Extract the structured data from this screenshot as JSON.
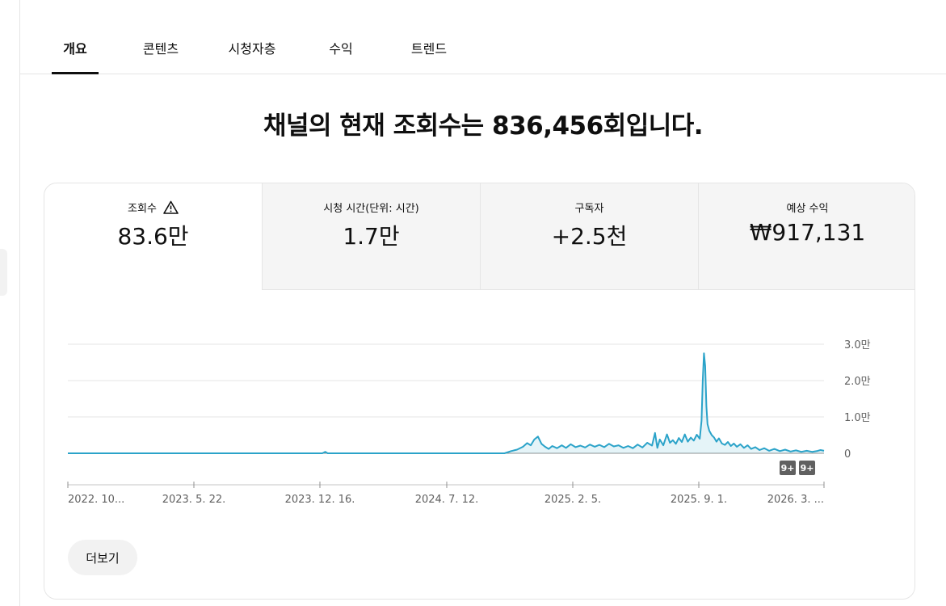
{
  "tabs": [
    {
      "label": "개요",
      "active": true
    },
    {
      "label": "콘텐츠",
      "active": false
    },
    {
      "label": "시청자층",
      "active": false
    },
    {
      "label": "수익",
      "active": false
    },
    {
      "label": "트렌드",
      "active": false
    }
  ],
  "headline": "채널의 현재 조회수는 836,456회입니다.",
  "metrics": [
    {
      "label": "조회수",
      "value": "83.6만",
      "warning_icon": "warning-triangle-icon"
    },
    {
      "label": "시청 시간(단위: 시간)",
      "value": "1.7만"
    },
    {
      "label": "구독자",
      "value": "+2.5천"
    },
    {
      "label": "예상 수익",
      "value": "₩917,131"
    }
  ],
  "chart_data": {
    "type": "area",
    "series_color": "#2ba3c9",
    "y_ticks": [
      {
        "value": 0,
        "label": "0"
      },
      {
        "value": 10000,
        "label": "1.0만"
      },
      {
        "value": 20000,
        "label": "2.0만"
      },
      {
        "value": 30000,
        "label": "3.0만"
      }
    ],
    "ylim": [
      0,
      30000
    ],
    "grid": true,
    "x_ticks": [
      "2022. 10...",
      "2023. 5. 22.",
      "2023. 12. 16.",
      "2024. 7. 12.",
      "2025. 2. 5.",
      "2025. 9. 1.",
      "2026. 3. ..."
    ],
    "x_range": [
      "2022-10-01",
      "2026-03-20"
    ],
    "markers": [
      "9+",
      "9+"
    ],
    "points": [
      [
        "2022-10-01",
        0
      ],
      [
        "2023-12-01",
        0
      ],
      [
        "2023-12-06",
        400
      ],
      [
        "2023-12-10",
        0
      ],
      [
        "2024-10-01",
        0
      ],
      [
        "2024-10-12",
        600
      ],
      [
        "2024-10-22",
        1000
      ],
      [
        "2024-11-01",
        1800
      ],
      [
        "2024-11-08",
        2800
      ],
      [
        "2024-11-14",
        2200
      ],
      [
        "2024-11-20",
        3800
      ],
      [
        "2024-11-26",
        4600
      ],
      [
        "2024-12-02",
        2600
      ],
      [
        "2024-12-08",
        1800
      ],
      [
        "2024-12-14",
        1200
      ],
      [
        "2024-12-20",
        2000
      ],
      [
        "2024-12-28",
        1400
      ],
      [
        "2025-01-05",
        2200
      ],
      [
        "2025-01-12",
        1500
      ],
      [
        "2025-01-20",
        2500
      ],
      [
        "2025-01-28",
        1700
      ],
      [
        "2025-02-05",
        2100
      ],
      [
        "2025-02-13",
        1600
      ],
      [
        "2025-02-21",
        2400
      ],
      [
        "2025-03-01",
        1800
      ],
      [
        "2025-03-09",
        2300
      ],
      [
        "2025-03-17",
        1700
      ],
      [
        "2025-03-25",
        2600
      ],
      [
        "2025-04-02",
        1900
      ],
      [
        "2025-04-10",
        2200
      ],
      [
        "2025-04-18",
        1500
      ],
      [
        "2025-04-26",
        2000
      ],
      [
        "2025-05-04",
        1400
      ],
      [
        "2025-05-12",
        2400
      ],
      [
        "2025-05-20",
        1600
      ],
      [
        "2025-05-28",
        2900
      ],
      [
        "2025-06-05",
        2100
      ],
      [
        "2025-06-10",
        5600
      ],
      [
        "2025-06-14",
        1500
      ],
      [
        "2025-06-18",
        3800
      ],
      [
        "2025-06-24",
        2200
      ],
      [
        "2025-06-30",
        5200
      ],
      [
        "2025-07-05",
        2900
      ],
      [
        "2025-07-10",
        3600
      ],
      [
        "2025-07-15",
        2600
      ],
      [
        "2025-07-20",
        4200
      ],
      [
        "2025-07-25",
        3100
      ],
      [
        "2025-07-30",
        5200
      ],
      [
        "2025-08-04",
        3200
      ],
      [
        "2025-08-09",
        4300
      ],
      [
        "2025-08-14",
        3500
      ],
      [
        "2025-08-19",
        5100
      ],
      [
        "2025-08-24",
        4000
      ],
      [
        "2025-08-27",
        9000
      ],
      [
        "2025-08-29",
        20000
      ],
      [
        "2025-08-31",
        27500
      ],
      [
        "2025-09-02",
        24000
      ],
      [
        "2025-09-04",
        13000
      ],
      [
        "2025-09-06",
        8000
      ],
      [
        "2025-09-09",
        6200
      ],
      [
        "2025-09-13",
        5000
      ],
      [
        "2025-09-17",
        4300
      ],
      [
        "2025-09-21",
        3200
      ],
      [
        "2025-09-25",
        4100
      ],
      [
        "2025-09-30",
        2700
      ],
      [
        "2025-10-05",
        2300
      ],
      [
        "2025-10-10",
        3100
      ],
      [
        "2025-10-15",
        2000
      ],
      [
        "2025-10-20",
        2700
      ],
      [
        "2025-10-25",
        1800
      ],
      [
        "2025-10-31",
        2500
      ],
      [
        "2025-11-06",
        1500
      ],
      [
        "2025-11-12",
        2200
      ],
      [
        "2025-11-18",
        1200
      ],
      [
        "2025-11-25",
        1700
      ],
      [
        "2025-12-02",
        900
      ],
      [
        "2025-12-10",
        1400
      ],
      [
        "2025-12-18",
        700
      ],
      [
        "2025-12-27",
        1200
      ],
      [
        "2026-01-05",
        600
      ],
      [
        "2026-01-14",
        1000
      ],
      [
        "2026-01-23",
        500
      ],
      [
        "2026-02-01",
        800
      ],
      [
        "2026-02-10",
        400
      ],
      [
        "2026-02-19",
        700
      ],
      [
        "2026-02-28",
        400
      ],
      [
        "2026-03-08",
        600
      ],
      [
        "2026-03-14",
        900
      ],
      [
        "2026-03-20",
        700
      ]
    ]
  },
  "more_button_label": "더보기"
}
